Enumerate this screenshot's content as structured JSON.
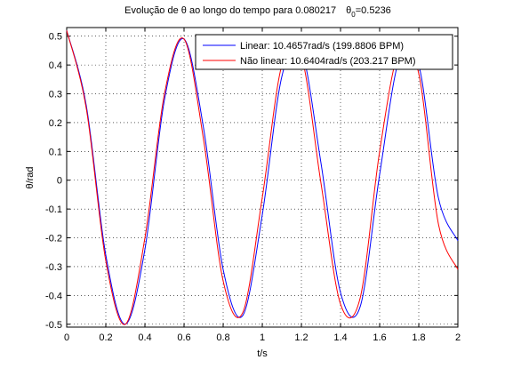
{
  "chart_data": {
    "type": "line",
    "title": "Evolução de θ ao longo do tempo para 0.080217",
    "title_theta": "θ",
    "title_theta_sub": "0",
    "title_theta_value": "=0.5236",
    "xlabel": "t/s",
    "ylabel": "θ/rad",
    "xlim": [
      0,
      2
    ],
    "ylim": [
      -0.51,
      0.53
    ],
    "x_ticks": [
      0,
      0.2,
      0.4,
      0.6,
      0.8,
      1,
      1.2,
      1.4,
      1.6,
      1.8,
      2
    ],
    "x_tick_labels": [
      "0",
      "0.2",
      "0.4",
      "0.6",
      "0.8",
      "1",
      "1.2",
      "1.4",
      "1.6",
      "1.8",
      "2"
    ],
    "y_ticks": [
      -0.5,
      -0.4,
      -0.3,
      -0.2,
      -0.1,
      0,
      0.1,
      0.2,
      0.3,
      0.4,
      0.5
    ],
    "y_tick_labels": [
      "-0.5",
      "-0.4",
      "-0.3",
      "-0.2",
      "-0.1",
      "0",
      "0.1",
      "0.2",
      "0.3",
      "0.4",
      "0.5"
    ],
    "grid": true,
    "legend_position": "top-right",
    "series": [
      {
        "name": "Linear: 10.4657rad/s (199.8806 BPM)",
        "color": "#0000ff",
        "x": [
          0,
          0.1,
          0.2,
          0.3,
          0.4,
          0.5,
          0.6,
          0.7,
          0.8,
          0.9,
          1.0,
          1.1,
          1.2,
          1.3,
          1.4,
          1.5,
          1.6,
          1.7,
          1.8,
          1.9,
          2.0
        ],
        "y": [
          0.52,
          0.26,
          -0.26,
          -0.5,
          -0.24,
          0.28,
          0.49,
          0.18,
          -0.31,
          -0.47,
          -0.12,
          0.36,
          0.45,
          0.06,
          -0.39,
          -0.44,
          0.02,
          0.42,
          0.4,
          -0.06,
          -0.21
        ]
      },
      {
        "name": "Não linear: 10.6404rad/s (203.217 BPM)",
        "color": "#ff0000",
        "x": [
          0,
          0.1,
          0.2,
          0.3,
          0.4,
          0.5,
          0.6,
          0.7,
          0.8,
          0.9,
          1.0,
          1.1,
          1.2,
          1.3,
          1.4,
          1.5,
          1.6,
          1.7,
          1.8,
          1.9,
          2.0
        ],
        "y": [
          0.52,
          0.25,
          -0.28,
          -0.5,
          -0.2,
          0.3,
          0.49,
          0.14,
          -0.35,
          -0.46,
          -0.06,
          0.4,
          0.43,
          -0.01,
          -0.43,
          -0.41,
          0.1,
          0.45,
          0.37,
          -0.15,
          -0.31
        ]
      }
    ]
  }
}
